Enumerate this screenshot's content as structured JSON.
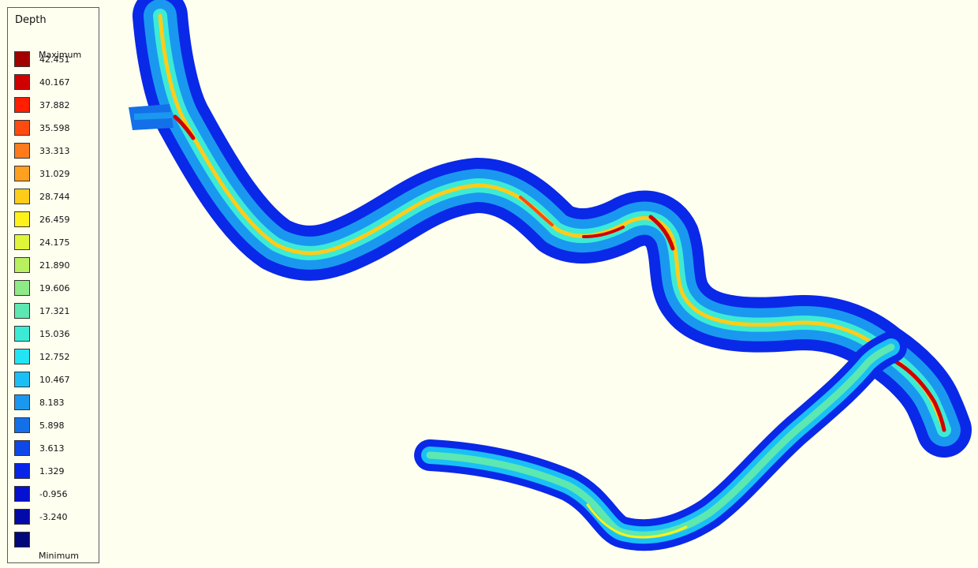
{
  "legend": {
    "title": "Depth",
    "max_label": "Maximum",
    "min_label": "Minimum",
    "entries": [
      {
        "label": "42.451",
        "color": "#A30000"
      },
      {
        "label": "40.167",
        "color": "#D10000"
      },
      {
        "label": "37.882",
        "color": "#FF1E00"
      },
      {
        "label": "35.598",
        "color": "#FF4A10"
      },
      {
        "label": "33.313",
        "color": "#FF7A1A"
      },
      {
        "label": "31.029",
        "color": "#FFA020"
      },
      {
        "label": "28.744",
        "color": "#FFCC1A"
      },
      {
        "label": "26.459",
        "color": "#FFF21A"
      },
      {
        "label": "24.175",
        "color": "#E0F53A"
      },
      {
        "label": "21.890",
        "color": "#B8F060"
      },
      {
        "label": "19.606",
        "color": "#8EEA86"
      },
      {
        "label": "17.321",
        "color": "#5CE8B0"
      },
      {
        "label": "15.036",
        "color": "#3CEBD5"
      },
      {
        "label": "12.752",
        "color": "#22E4F4"
      },
      {
        "label": "10.467",
        "color": "#1AC0F5"
      },
      {
        "label": "8.183",
        "color": "#1A98F0"
      },
      {
        "label": "5.898",
        "color": "#1470E8"
      },
      {
        "label": "3.613",
        "color": "#0E48E8"
      },
      {
        "label": "1.329",
        "color": "#0824E8"
      },
      {
        "label": "-0.956",
        "color": "#0610D0"
      },
      {
        "label": "-3.240",
        "color": "#040AA8"
      },
      {
        "label": "",
        "color": "#02087A"
      }
    ]
  }
}
